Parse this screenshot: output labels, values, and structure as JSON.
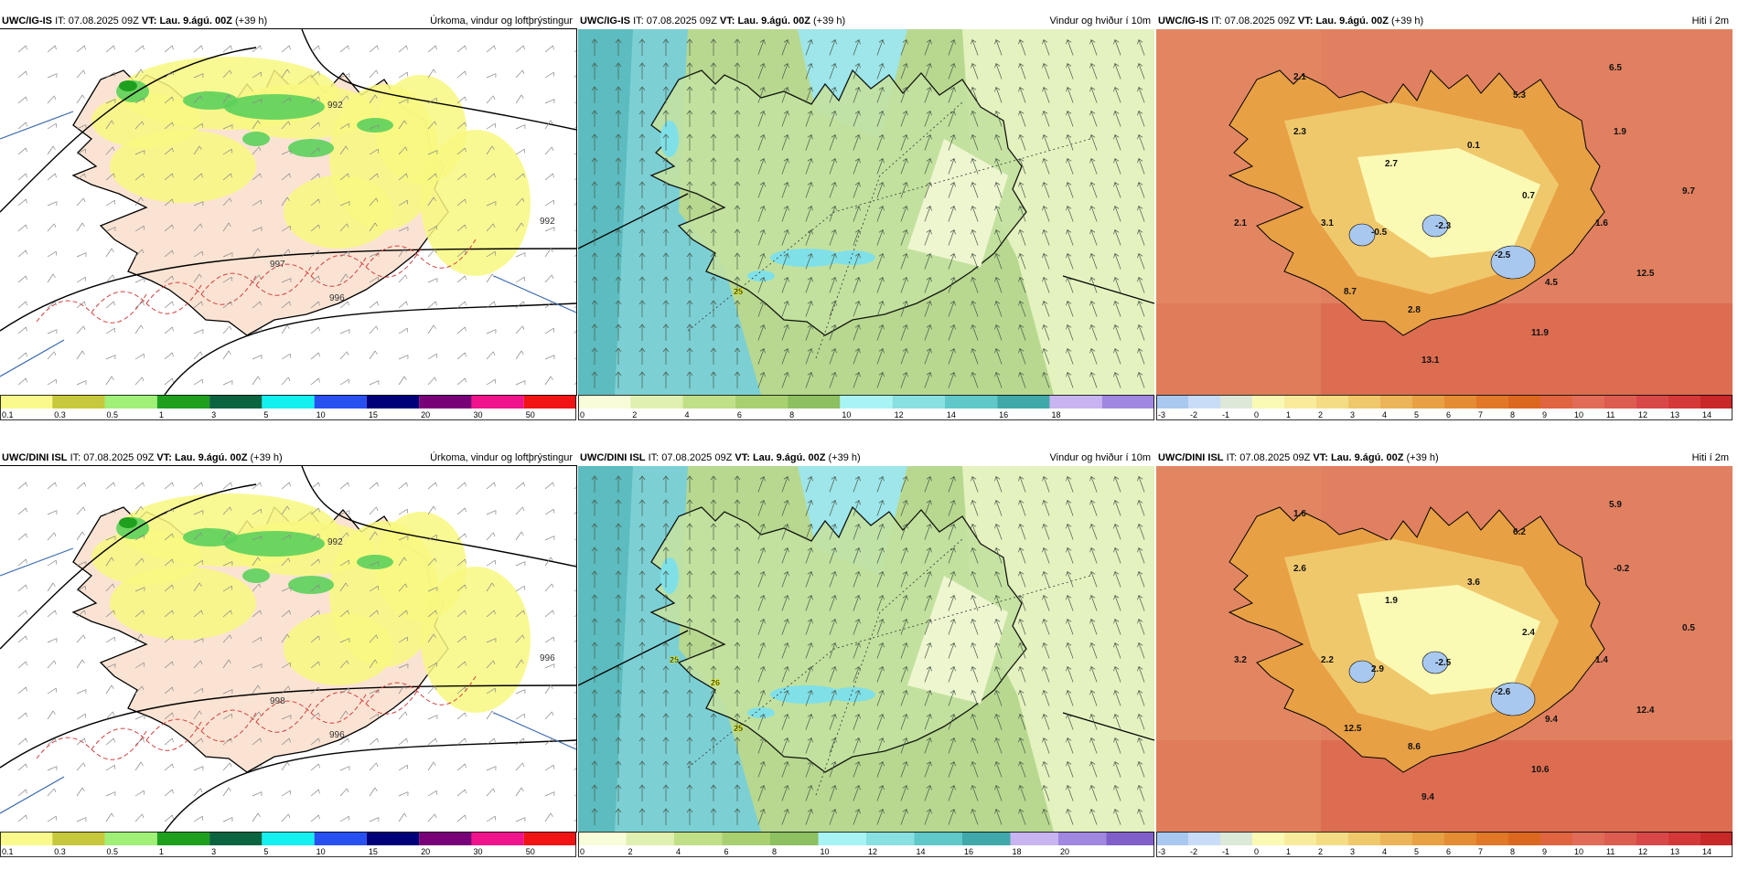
{
  "panels": [
    {
      "model": "UWC/IG-IS",
      "it_label": "IT:",
      "it": "07.08.2025 09Z",
      "vt_label": "VT:",
      "vt": "Lau. 9.ágú. 00Z",
      "lead": "(+39 h)",
      "title": "Úrkoma, vindur og loftþrýstingur",
      "type": "precip",
      "iso_labels": [
        {
          "t": "992"
        },
        {
          "t": "992"
        },
        {
          "t": "996"
        },
        {
          "t": "997"
        }
      ]
    },
    {
      "model": "UWC/IG-IS",
      "it_label": "IT:",
      "it": "07.08.2025 09Z",
      "vt_label": "VT:",
      "vt": "Lau. 9.ágú. 00Z",
      "lead": "(+39 h)",
      "title": "Vindur og hviður í 10m",
      "type": "wind",
      "gust_labels": [
        "25"
      ]
    },
    {
      "model": "UWC/IG-IS",
      "it_label": "IT:",
      "it": "07.08.2025 09Z",
      "vt_label": "VT:",
      "vt": "Lau. 9.ágú. 00Z",
      "lead": "(+39 h)",
      "title": "Hiti í 2m",
      "type": "temp",
      "temps": [
        "2.1",
        "6.5",
        "5.3",
        "2.3",
        "1.9",
        "0.1",
        "2.7",
        "0.7",
        "9.7",
        "2.1",
        "3.1",
        "-0.5",
        "-2.3",
        "1.6",
        "-2.5",
        "12.5",
        "4.5",
        "8.7",
        "2.8",
        "11.9",
        "13.1"
      ]
    },
    {
      "model": "UWC/DINI ISL",
      "it_label": "IT:",
      "it": "07.08.2025 09Z",
      "vt_label": "VT:",
      "vt": "Lau. 9.ágú. 00Z",
      "lead": "(+39 h)",
      "title": "Úrkoma, vindur og loftþrýstingur",
      "type": "precip",
      "iso_labels": [
        {
          "t": "992"
        },
        {
          "t": "996"
        },
        {
          "t": "996"
        },
        {
          "t": "998"
        }
      ]
    },
    {
      "model": "UWC/DINI ISL",
      "it_label": "IT:",
      "it": "07.08.2025 09Z",
      "vt_label": "VT:",
      "vt": "Lau. 9.ágú. 00Z",
      "lead": "(+39 h)",
      "title": "Vindur og hviður í 10m",
      "type": "wind",
      "gust_labels": [
        "25",
        "25",
        "26"
      ]
    },
    {
      "model": "UWC/DINI ISL",
      "it_label": "IT:",
      "it": "07.08.2025 09Z",
      "vt_label": "VT:",
      "vt": "Lau. 9.ágú. 00Z",
      "lead": "(+39 h)",
      "title": "Hiti í 2m",
      "type": "temp",
      "temps": [
        "1.6",
        "5.9",
        "6.2",
        "2.6",
        "-0.2",
        "3.6",
        "1.9",
        "2.4",
        "0.5",
        "3.2",
        "2.2",
        "2.9",
        "-2.5",
        "1.4",
        "-2.6",
        "12.4",
        "9.4",
        "12.5",
        "8.6",
        "10.6",
        "9.4"
      ]
    }
  ],
  "legends": {
    "precip": {
      "labels": [
        "0.1",
        "0.3",
        "0.5",
        "1",
        "3",
        "5",
        "10",
        "15",
        "20",
        "30",
        "50"
      ],
      "colors": [
        "#fafa8c",
        "#c8c83c",
        "#a0f078",
        "#1ea01e",
        "#0a6440",
        "#14f0f0",
        "#2850f0",
        "#000078",
        "#780078",
        "#f0148c",
        "#f01414"
      ]
    },
    "wind_ig": {
      "labels": [
        "0",
        "2",
        "4",
        "6",
        "8",
        "10",
        "12",
        "14",
        "16",
        "18"
      ],
      "colors": [
        "#f8fcd8",
        "#e0f0b0",
        "#c0e088",
        "#a8d070",
        "#8cc060",
        "#a8f4f4",
        "#88e0e0",
        "#60c8c8",
        "#40a8a8",
        "#c8b4f0",
        "#a088e0"
      ]
    },
    "wind_dini": {
      "labels": [
        "0",
        "2",
        "4",
        "6",
        "8",
        "10",
        "12",
        "14",
        "16",
        "18",
        "20"
      ],
      "colors": [
        "#f8fcd8",
        "#e0f0b0",
        "#c0e088",
        "#a8d070",
        "#8cc060",
        "#a8f4f4",
        "#88e0e0",
        "#60c8c8",
        "#40a8a8",
        "#c8b4f0",
        "#a088e0",
        "#8060c8"
      ]
    },
    "temp": {
      "labels": [
        "-3",
        "-2",
        "-1",
        "0",
        "1",
        "2",
        "3",
        "4",
        "5",
        "6",
        "7",
        "8",
        "9",
        "10",
        "11",
        "12",
        "13",
        "14"
      ],
      "colors": [
        "#a8c8f0",
        "#c8dcf8",
        "#dce8d8",
        "#fafab4",
        "#f8ec9c",
        "#f4dc84",
        "#f0c86c",
        "#ecb458",
        "#e8a044",
        "#e48c34",
        "#e07828",
        "#dc6820",
        "#e06440",
        "#e06c58",
        "#dc5c50",
        "#d84848",
        "#d43838",
        "#c82828"
      ]
    }
  },
  "colors": {
    "land_pink": "#fbe3d3",
    "precip_yellow": "#f8f880",
    "precip_green": "#5cd05c",
    "ocean_wind": "#9ee6ea",
    "temp_sea": "#e08060"
  }
}
